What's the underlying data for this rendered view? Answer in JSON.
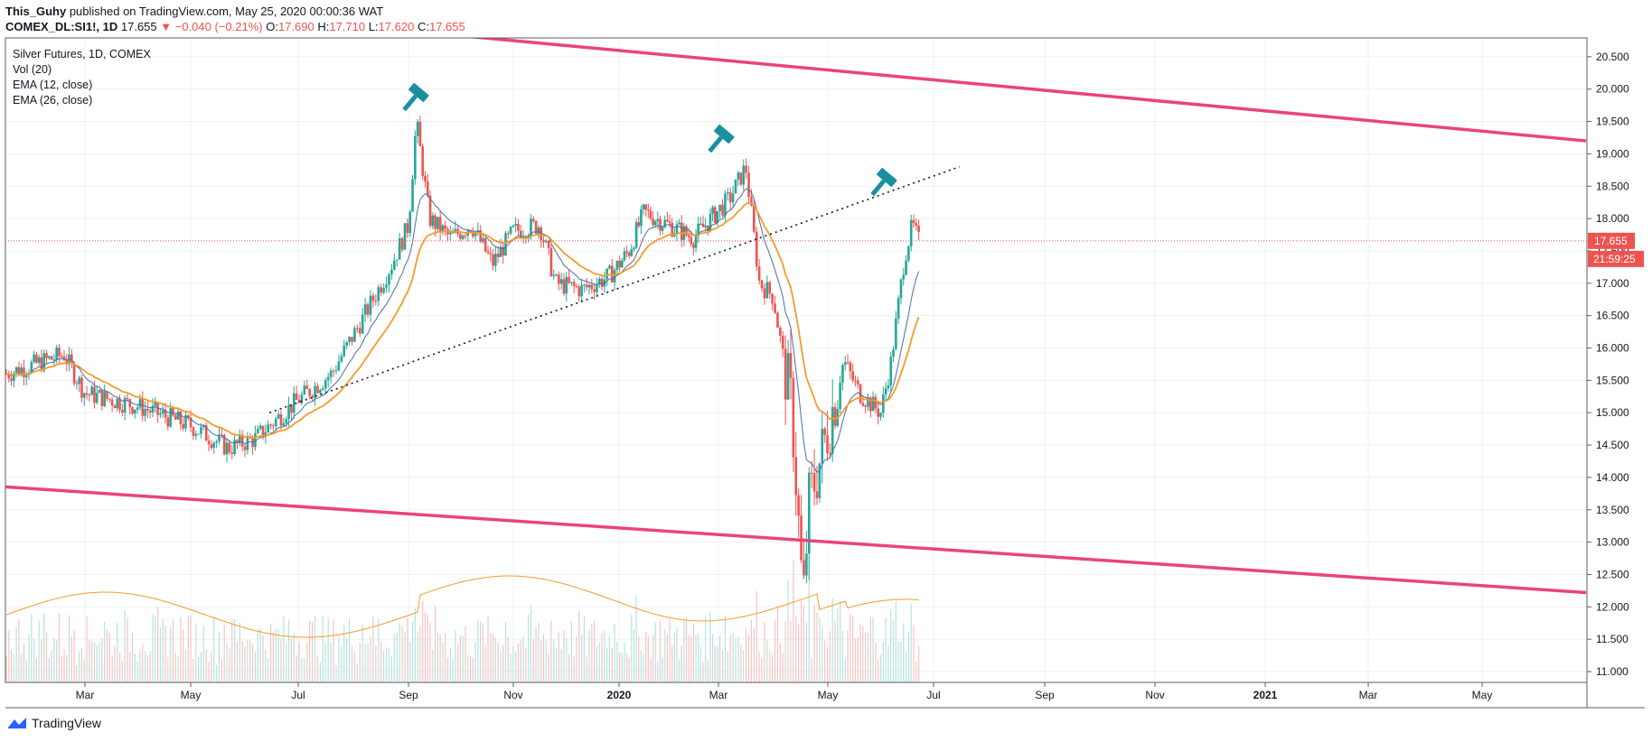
{
  "header": {
    "author": "This_Guhy",
    "published_text": "published on TradingView.com, May 25, 2020 00:00:36 WAT",
    "symbol": "COMEX_DL:SI1!, 1D",
    "last": "17.655",
    "change": "▼ −0.040 (−0.21%)",
    "open_label": "O:",
    "open": "17.690",
    "high_label": "H:",
    "high": "17.710",
    "low_label": "L:",
    "low": "17.620",
    "close_label": "C:",
    "close": "17.655"
  },
  "legend": {
    "title": "Silver Futures, 1D, COMEX",
    "vol": "Vol (20)",
    "ema1": "EMA (12, close)",
    "ema2": "EMA (26, close)"
  },
  "price_badge": {
    "price": "17.655",
    "countdown": "21:59:25"
  },
  "brand": {
    "name": "TradingView"
  },
  "colors": {
    "up": "#26a69a",
    "down": "#ef5350",
    "ema12": "#4a6fa5",
    "ema26": "#f59b2b",
    "channel": "#e8457c",
    "grid": "#eef1f4",
    "icon": "#1a8fa0"
  },
  "icons": [
    "hammer-icon",
    "tradingview-logo-icon"
  ],
  "chart_data": {
    "type": "candlestick",
    "y_ticks": [
      "11.000",
      "11.500",
      "12.000",
      "12.500",
      "13.000",
      "13.500",
      "14.000",
      "14.500",
      "15.000",
      "15.500",
      "16.000",
      "16.500",
      "17.000",
      "17.500",
      "18.000",
      "18.500",
      "19.000",
      "19.500",
      "20.000",
      "20.500"
    ],
    "x_ticks": [
      "Mar",
      "May",
      "Jul",
      "Sep",
      "Nov",
      "2020",
      "Mar",
      "May",
      "Jul",
      "Sep",
      "Nov",
      "2021",
      "Mar",
      "May"
    ],
    "ylim": [
      10.9,
      20.75
    ],
    "current_price": 17.655,
    "ohlc_path_monthly": [
      {
        "month": "2019-01",
        "close": 15.6
      },
      {
        "month": "2019-02",
        "close": 15.9
      },
      {
        "month": "2019-03",
        "close": 15.2
      },
      {
        "month": "2019-04",
        "close": 15.0
      },
      {
        "month": "2019-05",
        "close": 14.6
      },
      {
        "month": "2019-06",
        "close": 15.3
      },
      {
        "month": "2019-07",
        "close": 16.5
      },
      {
        "month": "2019-08",
        "close": 18.4
      },
      {
        "month": "2019-09",
        "close": 17.6
      },
      {
        "month": "2019-10",
        "close": 18.0
      },
      {
        "month": "2019-11",
        "close": 17.0
      },
      {
        "month": "2019-12",
        "close": 17.9
      },
      {
        "month": "2020-01",
        "close": 18.0
      },
      {
        "month": "2020-02",
        "close": 17.8
      },
      {
        "month": "2020-03",
        "close": 14.0
      },
      {
        "month": "2020-04",
        "close": 15.3
      },
      {
        "month": "2020-05",
        "close": 17.655
      }
    ],
    "trendlines": [
      {
        "name": "upper-channel",
        "from": {
          "date": "2019-09-01",
          "price": 20.9
        },
        "to": {
          "date": "2021-06-30",
          "price": 19.2
        }
      },
      {
        "name": "lower-channel",
        "from": {
          "date": "2019-01-01",
          "price": 13.88
        },
        "to": {
          "date": "2021-06-30",
          "price": 12.22
        }
      },
      {
        "name": "dotted-support",
        "from": {
          "date": "2019-06-15",
          "price": 15.0
        },
        "to": {
          "date": "2020-07-15",
          "price": 18.8
        }
      }
    ],
    "annotations": [
      "hammer near 2019-09 high (19.9)",
      "hammer near 2020-02 high (19.3)",
      "hammer near 2020-06 (18.6)"
    ]
  }
}
